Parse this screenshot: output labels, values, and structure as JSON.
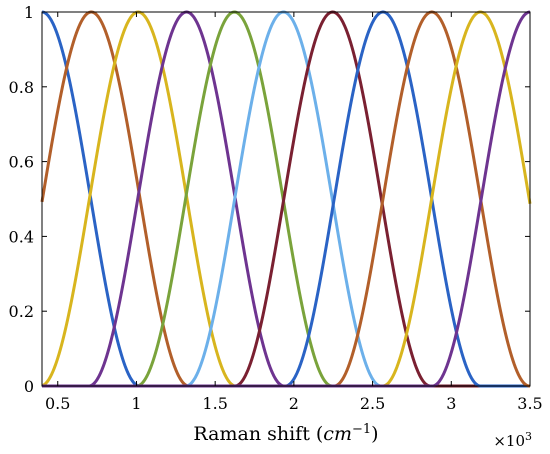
{
  "chart_data": {
    "type": "line",
    "xlabel_text": "Raman shift (",
    "xlabel_unit": "cm",
    "xlabel_exp": "−1",
    "xlabel_close": ")",
    "x_multiplier": "×10",
    "x_multiplier_exp": "3",
    "xlim": [
      0.4,
      3.5
    ],
    "ylim": [
      0,
      1
    ],
    "xticks": [
      "0.5",
      "1",
      "1.5",
      "2",
      "2.5",
      "3",
      "3.5"
    ],
    "xtick_values": [
      0.5,
      1.0,
      1.5,
      2.0,
      2.5,
      3.0,
      3.5
    ],
    "yticks": [
      "0",
      "0.2",
      "0.4",
      "0.6",
      "0.8",
      "1"
    ],
    "ytick_values": [
      0,
      0.2,
      0.4,
      0.6,
      0.8,
      1.0
    ],
    "grid": false,
    "curve_shape": "raised-cosine",
    "curve_halfwidth": 0.62,
    "series": [
      {
        "center": 0.4,
        "color": "#2a63c5"
      },
      {
        "center": 0.713,
        "color": "#b25f2a"
      },
      {
        "center": 1.011,
        "color": "#d8b51e"
      },
      {
        "center": 1.318,
        "color": "#6e3490"
      },
      {
        "center": 1.622,
        "color": "#7aa33b"
      },
      {
        "center": 1.934,
        "color": "#6cb0ea"
      },
      {
        "center": 2.246,
        "color": "#7a2031"
      },
      {
        "center": 2.566,
        "color": "#2a63c5"
      },
      {
        "center": 2.876,
        "color": "#b25f2a"
      },
      {
        "center": 3.185,
        "color": "#d8b51e"
      },
      {
        "center": 3.5,
        "color": "#6e3490"
      }
    ]
  }
}
